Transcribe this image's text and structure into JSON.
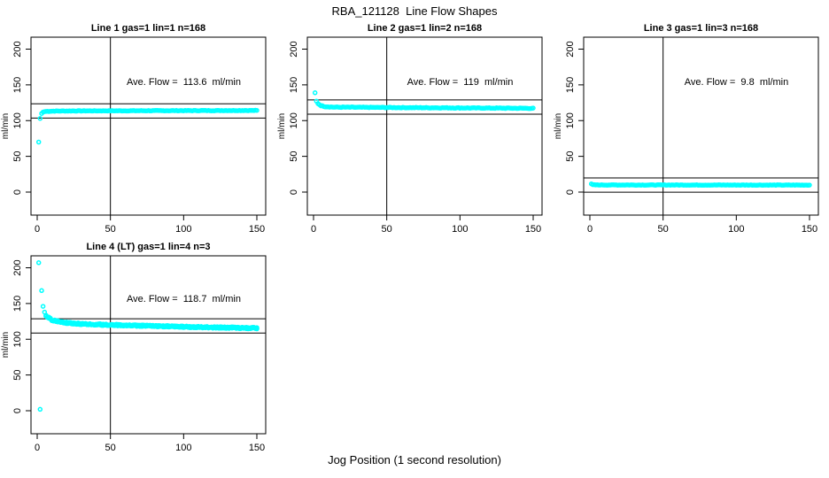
{
  "page": {
    "title": "RBA_121128  Line Flow Shapes",
    "outer_xlabel": "Jog Position (1 second resolution)"
  },
  "colors": {
    "points": "#00FFFF",
    "axis": "#000000",
    "background": "#FFFFFF"
  },
  "chart_data": [
    {
      "type": "scatter",
      "title": "Line 1 gas=1 lin=1 n=168",
      "annotation": "Ave. Flow =  113.6  ml/min",
      "ave_flow": 113.6,
      "n": 168,
      "ylabel": "ml/min",
      "xticks": [
        0,
        50,
        100,
        150
      ],
      "yticks": [
        0,
        50,
        100,
        150,
        200
      ],
      "xlim": [
        -4.5,
        156
      ],
      "ylim": [
        -32,
        217
      ],
      "grid": false,
      "hlines": [
        123.6,
        103.6
      ],
      "vline": 50,
      "marker": "open-circle",
      "transient_points": [
        [
          1,
          70
        ],
        [
          2,
          103
        ],
        [
          3,
          110
        ],
        [
          4,
          112
        ],
        [
          5,
          112.6
        ]
      ],
      "trend": [
        [
          6,
          112.8
        ],
        [
          12,
          113.4
        ],
        [
          30,
          113.6
        ],
        [
          150,
          114.2
        ]
      ],
      "jitter": 0.35,
      "passes": 1
    },
    {
      "type": "scatter",
      "title": "Line 2 gas=1 lin=2 n=168",
      "annotation": "Ave. Flow =  119  ml/min",
      "ave_flow": 119,
      "n": 168,
      "ylabel": "ml/min",
      "xticks": [
        0,
        50,
        100,
        150
      ],
      "yticks": [
        0,
        50,
        100,
        150,
        200
      ],
      "xlim": [
        -4.5,
        156
      ],
      "ylim": [
        -32,
        217
      ],
      "grid": false,
      "hlines": [
        129,
        109
      ],
      "vline": 50,
      "marker": "open-circle",
      "transient_points": [
        [
          1,
          139
        ]
      ],
      "trend": [
        [
          2,
          127
        ],
        [
          3,
          124
        ],
        [
          5,
          121
        ],
        [
          8,
          119.5
        ],
        [
          15,
          118.8
        ],
        [
          60,
          118.2
        ],
        [
          150,
          117.2
        ]
      ],
      "jitter": 0.45,
      "passes": 1
    },
    {
      "type": "scatter",
      "title": "Line 3 gas=1 lin=3 n=168",
      "annotation": "Ave. Flow =  9.8  ml/min",
      "ave_flow": 9.8,
      "n": 168,
      "ylabel": "ml/min",
      "xticks": [
        0,
        50,
        100,
        150
      ],
      "yticks": [
        0,
        50,
        100,
        150,
        200
      ],
      "xlim": [
        -4.5,
        156
      ],
      "ylim": [
        -32,
        217
      ],
      "grid": false,
      "hlines": [
        19.8,
        -0.2
      ],
      "vline": 50,
      "marker": "open-circle",
      "transient_points": [
        [
          1,
          11.5
        ]
      ],
      "trend": [
        [
          2,
          10.3
        ],
        [
          5,
          10
        ],
        [
          150,
          9.8
        ]
      ],
      "jitter": 0.3,
      "passes": 1
    },
    {
      "type": "scatter",
      "title": "Line 4 (LT) gas=1 lin=4 n=3",
      "annotation": "Ave. Flow =  118.7  ml/min",
      "ave_flow": 118.7,
      "n": 3,
      "ylabel": "ml/min",
      "xticks": [
        0,
        50,
        100,
        150
      ],
      "yticks": [
        0,
        50,
        100,
        150,
        200
      ],
      "xlim": [
        -4.5,
        156
      ],
      "ylim": [
        -32,
        217
      ],
      "grid": false,
      "hlines": [
        128.7,
        108.7
      ],
      "vline": 50,
      "marker": "open-circle",
      "transient_points": [
        [
          1,
          207
        ],
        [
          2,
          2
        ],
        [
          3,
          168
        ],
        [
          4,
          146
        ],
        [
          5,
          138
        ]
      ],
      "trend": [
        [
          6,
          133
        ],
        [
          10,
          127
        ],
        [
          15,
          124.5
        ],
        [
          20,
          123
        ],
        [
          30,
          121.5
        ],
        [
          50,
          120
        ],
        [
          80,
          118.5
        ],
        [
          110,
          117
        ],
        [
          150,
          115.5
        ]
      ],
      "jitter": 1.1,
      "passes": 3
    }
  ]
}
